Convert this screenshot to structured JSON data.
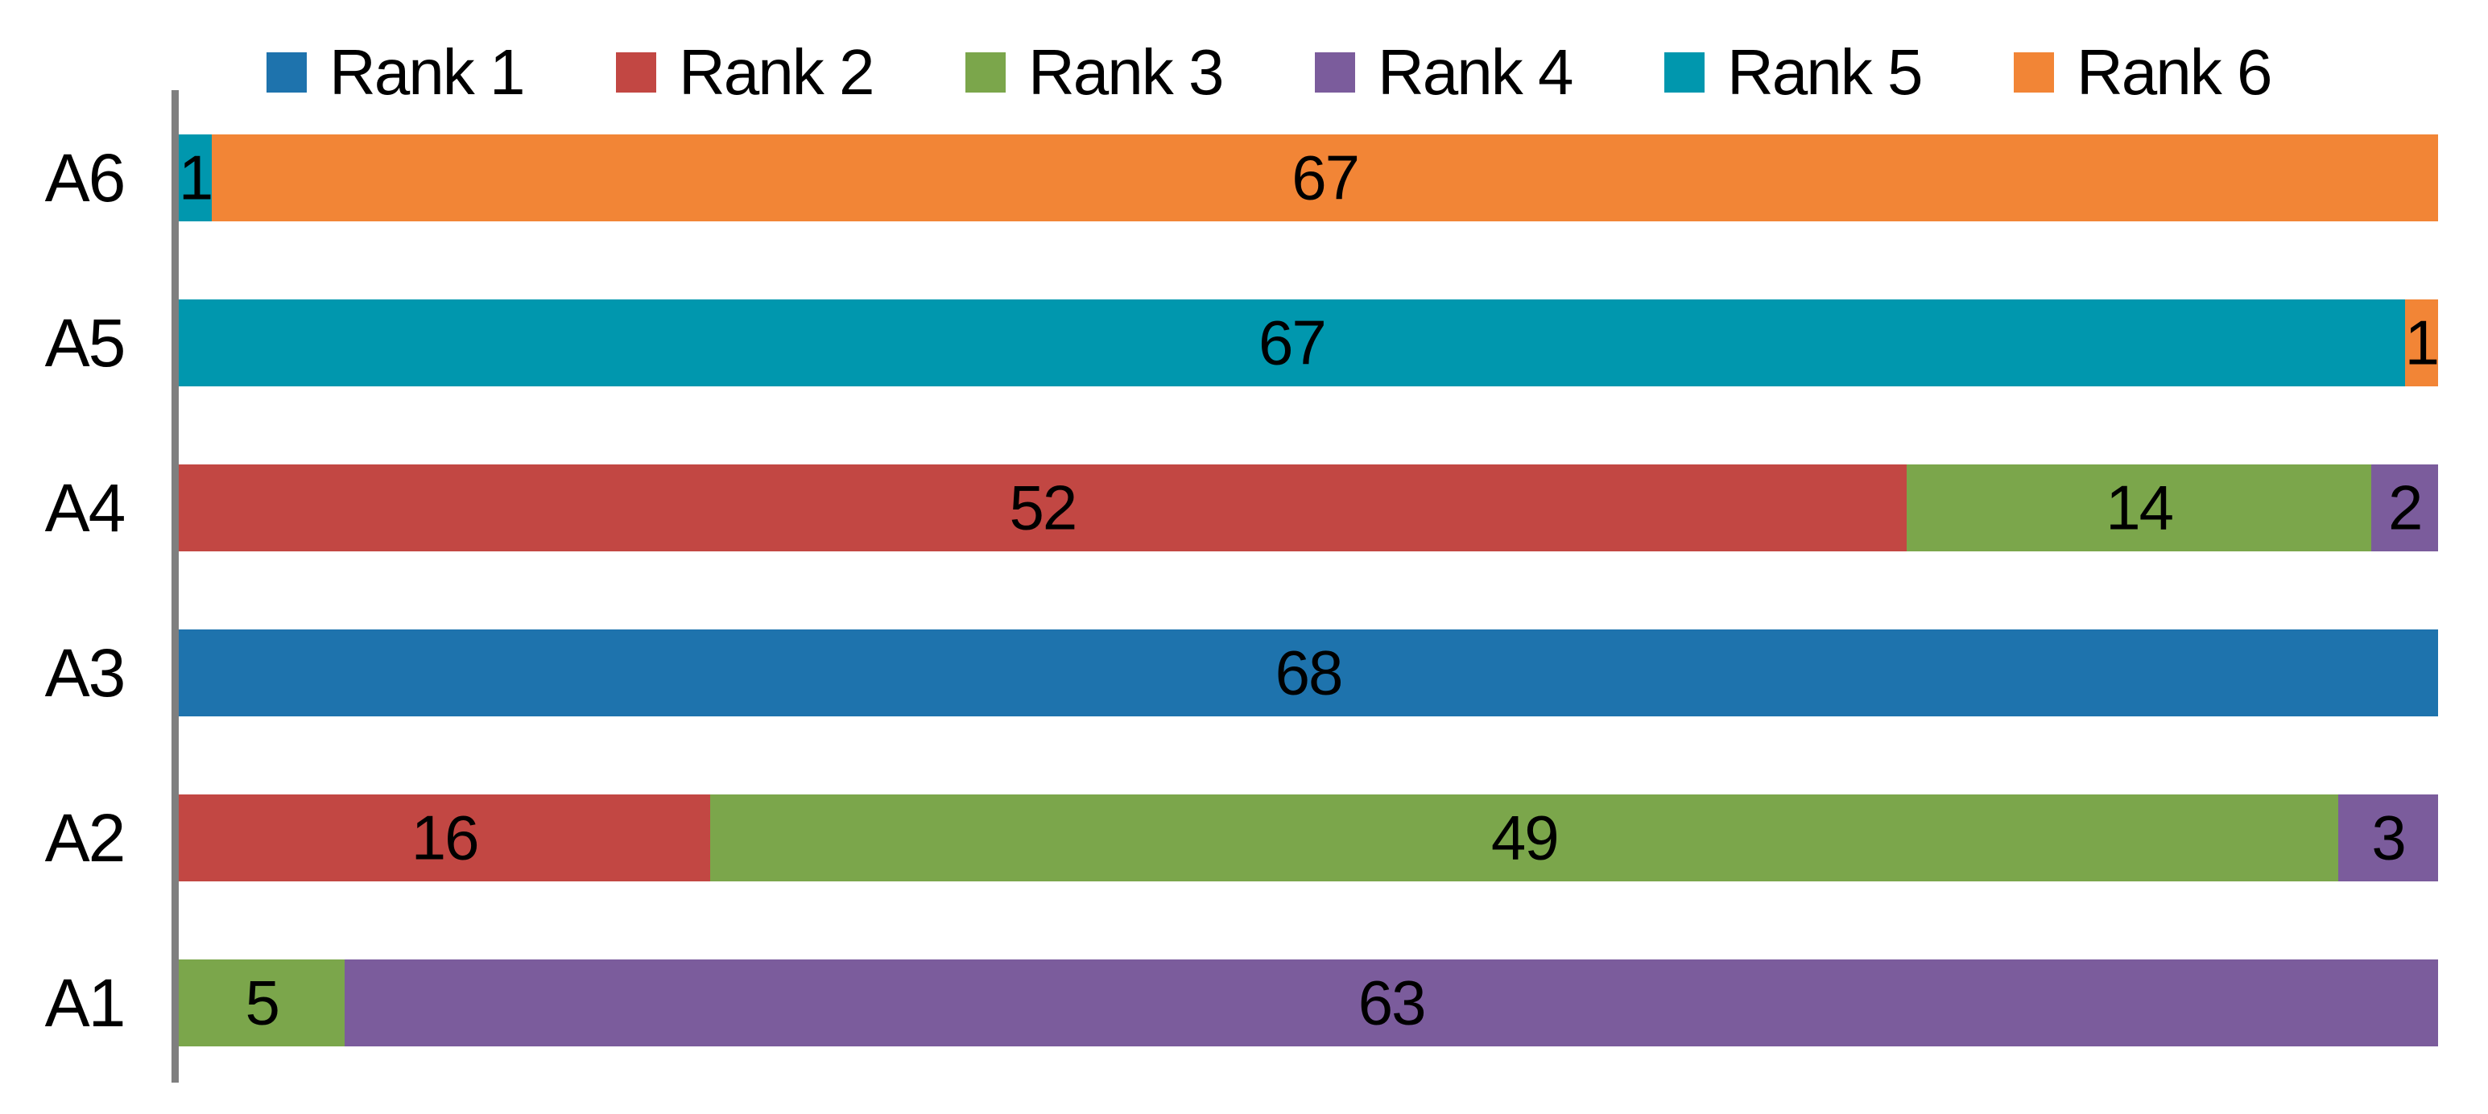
{
  "chart_data": {
    "type": "bar",
    "orientation": "horizontal",
    "stacked": true,
    "title": "",
    "xlabel": "",
    "ylabel": "",
    "xlim": [
      0,
      68
    ],
    "grid": false,
    "legend_position": "top",
    "axis_color": "#7f7f7f",
    "background_color": "#ffffff",
    "label_color": "#000000",
    "categories": [
      "A1",
      "A2",
      "A3",
      "A4",
      "A5",
      "A6"
    ],
    "categories_display_order_top_to_bottom": [
      "A6",
      "A5",
      "A4",
      "A3",
      "A2",
      "A1"
    ],
    "series": [
      {
        "name": "Rank 1",
        "color": "#1e73ad",
        "values": [
          0,
          0,
          68,
          0,
          0,
          0
        ]
      },
      {
        "name": "Rank 2",
        "color": "#c24743",
        "values": [
          0,
          16,
          0,
          52,
          0,
          0
        ]
      },
      {
        "name": "Rank 3",
        "color": "#7ba64b",
        "values": [
          5,
          49,
          0,
          14,
          0,
          0
        ]
      },
      {
        "name": "Rank 4",
        "color": "#7b5c9c",
        "values": [
          63,
          3,
          0,
          2,
          0,
          0
        ]
      },
      {
        "name": "Rank 5",
        "color": "#0097ae",
        "values": [
          0,
          0,
          0,
          0,
          67,
          1
        ]
      },
      {
        "name": "Rank 6",
        "color": "#f28536",
        "values": [
          0,
          0,
          0,
          0,
          1,
          67
        ]
      }
    ],
    "data_labels_shown": true,
    "row_totals": [
      68,
      68,
      68,
      68,
      68,
      68
    ]
  }
}
